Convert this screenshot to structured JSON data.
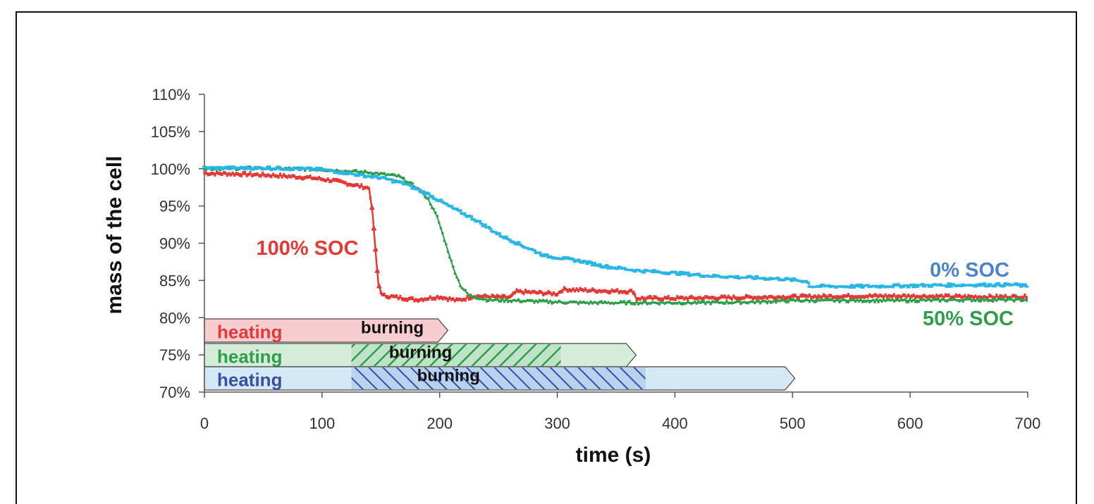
{
  "chart_data": {
    "type": "line",
    "xlabel": "time (s)",
    "ylabel": "mass of the cell",
    "xlim": [
      0,
      700
    ],
    "ylim": [
      70,
      110
    ],
    "x_ticks": [
      "0",
      "100",
      "200",
      "300",
      "400",
      "500",
      "600",
      "700"
    ],
    "y_ticks": [
      "70%",
      "75%",
      "80%",
      "85%",
      "90%",
      "95%",
      "100%",
      "105%",
      "110%"
    ],
    "grid": false,
    "series": [
      {
        "name": "100% SOC",
        "color": "#e53935",
        "marker": "triangle",
        "points": [
          [
            0,
            99.4
          ],
          [
            30,
            99.3
          ],
          [
            60,
            99.1
          ],
          [
            90,
            98.8
          ],
          [
            110,
            98.4
          ],
          [
            125,
            97.9
          ],
          [
            140,
            97.4
          ],
          [
            143,
            94.0
          ],
          [
            146,
            88.0
          ],
          [
            148,
            84.5
          ],
          [
            151,
            83.0
          ],
          [
            165,
            82.7
          ],
          [
            180,
            82.4
          ],
          [
            200,
            82.8
          ],
          [
            215,
            82.3
          ],
          [
            230,
            82.9
          ],
          [
            260,
            82.7
          ],
          [
            265,
            83.5
          ],
          [
            300,
            83.2
          ],
          [
            305,
            83.8
          ],
          [
            340,
            83.6
          ],
          [
            365,
            83.5
          ],
          [
            367,
            82.6
          ],
          [
            400,
            82.6
          ],
          [
            450,
            82.7
          ],
          [
            500,
            82.8
          ],
          [
            550,
            82.9
          ],
          [
            600,
            82.9
          ],
          [
            650,
            82.8
          ],
          [
            700,
            82.8
          ]
        ]
      },
      {
        "name": "50% SOC",
        "color": "#2e9e4a",
        "marker": "dot",
        "points": [
          [
            0,
            100.0
          ],
          [
            50,
            100.1
          ],
          [
            100,
            99.9
          ],
          [
            140,
            99.5
          ],
          [
            165,
            99.0
          ],
          [
            180,
            97.5
          ],
          [
            190,
            96.0
          ],
          [
            198,
            93.5
          ],
          [
            205,
            90.0
          ],
          [
            212,
            86.5
          ],
          [
            218,
            84.2
          ],
          [
            225,
            83.0
          ],
          [
            240,
            82.4
          ],
          [
            280,
            82.2
          ],
          [
            320,
            82.0
          ],
          [
            370,
            82.0
          ],
          [
            420,
            82.0
          ],
          [
            470,
            82.1
          ],
          [
            500,
            82.3
          ],
          [
            550,
            82.3
          ],
          [
            600,
            82.3
          ],
          [
            650,
            82.4
          ],
          [
            700,
            82.4
          ]
        ]
      },
      {
        "name": "0% SOC",
        "color": "#29b6e6",
        "marker": "dash",
        "points": [
          [
            0,
            100.1
          ],
          [
            50,
            100.1
          ],
          [
            100,
            99.9
          ],
          [
            130,
            99.2
          ],
          [
            150,
            98.8
          ],
          [
            170,
            98.0
          ],
          [
            190,
            96.6
          ],
          [
            210,
            94.8
          ],
          [
            230,
            93.2
          ],
          [
            250,
            91.2
          ],
          [
            270,
            89.7
          ],
          [
            290,
            88.3
          ],
          [
            320,
            87.6
          ],
          [
            340,
            86.9
          ],
          [
            370,
            86.3
          ],
          [
            400,
            86.0
          ],
          [
            430,
            85.6
          ],
          [
            460,
            85.4
          ],
          [
            490,
            85.2
          ],
          [
            512,
            84.9
          ],
          [
            515,
            84.2
          ],
          [
            560,
            84.2
          ],
          [
            600,
            84.3
          ],
          [
            650,
            84.4
          ],
          [
            690,
            84.4
          ],
          [
            700,
            84.2
          ]
        ]
      }
    ],
    "labels": [
      {
        "text": "100% SOC",
        "color": "#e53935"
      },
      {
        "text": "0% SOC",
        "color": "#4a84c9"
      },
      {
        "text": "50% SOC",
        "color": "#2e9e4a"
      }
    ],
    "phase_bars": [
      {
        "series": "100% SOC",
        "heating_label": "heating",
        "burning_label": "burning",
        "heating_start": 0,
        "burning_start": 125,
        "burning_end": 175,
        "end": 207,
        "color": "#e53935",
        "fill": "#f7cdd0",
        "hatch": false
      },
      {
        "series": "50% SOC",
        "heating_label": "heating",
        "burning_label": "burning",
        "heating_start": 0,
        "burning_start": 125,
        "burning_end": 303,
        "end": 367,
        "color": "#2e9e4a",
        "fill": "#d4ecd8",
        "hatch": true
      },
      {
        "series": "0% SOC",
        "heating_label": "heating",
        "burning_label": "burning",
        "heating_start": 0,
        "burning_start": 125,
        "burning_end": 375,
        "end": 502,
        "color": "#3a4ea3",
        "fill": "#d4e8f5",
        "hatch": true
      }
    ]
  }
}
